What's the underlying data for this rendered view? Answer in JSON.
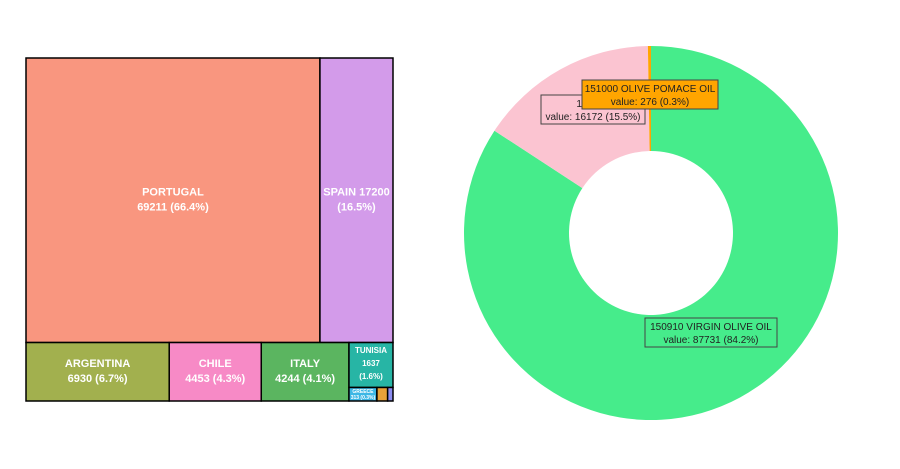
{
  "chart_data": [
    {
      "type": "treemap",
      "items": [
        {
          "name": "PORTUGAL",
          "value": 69211,
          "pct_label": "(66.4%)",
          "color": "#F9967F"
        },
        {
          "name": "SPAIN",
          "value": 17200,
          "pct_label": "(16.5%)",
          "color": "#D39BEA"
        },
        {
          "name": "ARGENTINA",
          "value": 6930,
          "pct_label": "(6.7%)",
          "color": "#A2B04E"
        },
        {
          "name": "CHILE",
          "value": 4453,
          "pct_label": "(4.3%)",
          "color": "#F78AC6"
        },
        {
          "name": "ITALY",
          "value": 4244,
          "pct_label": "(4.1%)",
          "color": "#5BB560"
        },
        {
          "name": "TUNISIA",
          "value": 1637,
          "pct_label": "(1.6%)",
          "color": "#27B5A5"
        },
        {
          "name": "GREECE",
          "value": 313,
          "pct_label": "(0.3%)",
          "color": "#3DB7E5"
        },
        {
          "name": "",
          "value": 120,
          "pct_label": "",
          "color": "#E8A13A"
        },
        {
          "name": "",
          "value": 60,
          "pct_label": "",
          "color": "#8C8CF0"
        }
      ]
    },
    {
      "type": "donut",
      "slices": [
        {
          "label": "150910 VIRGIN OLIVE OIL",
          "value": 87731,
          "value_text": "value: 87731 (84.2%)",
          "color": "#46EC8B",
          "box_fill": "#46EC8B"
        },
        {
          "label": "150990",
          "value": 16172,
          "value_text": "value: 16172 (15.5%)",
          "color": "#FBC4D1",
          "box_fill": "#FBC4D1"
        },
        {
          "label": "151000 OLIVE POMACE OIL",
          "value": 276,
          "value_text": "value: 276 (0.3%)",
          "color": "#FFA500",
          "box_fill": "#FFA500"
        }
      ]
    }
  ]
}
